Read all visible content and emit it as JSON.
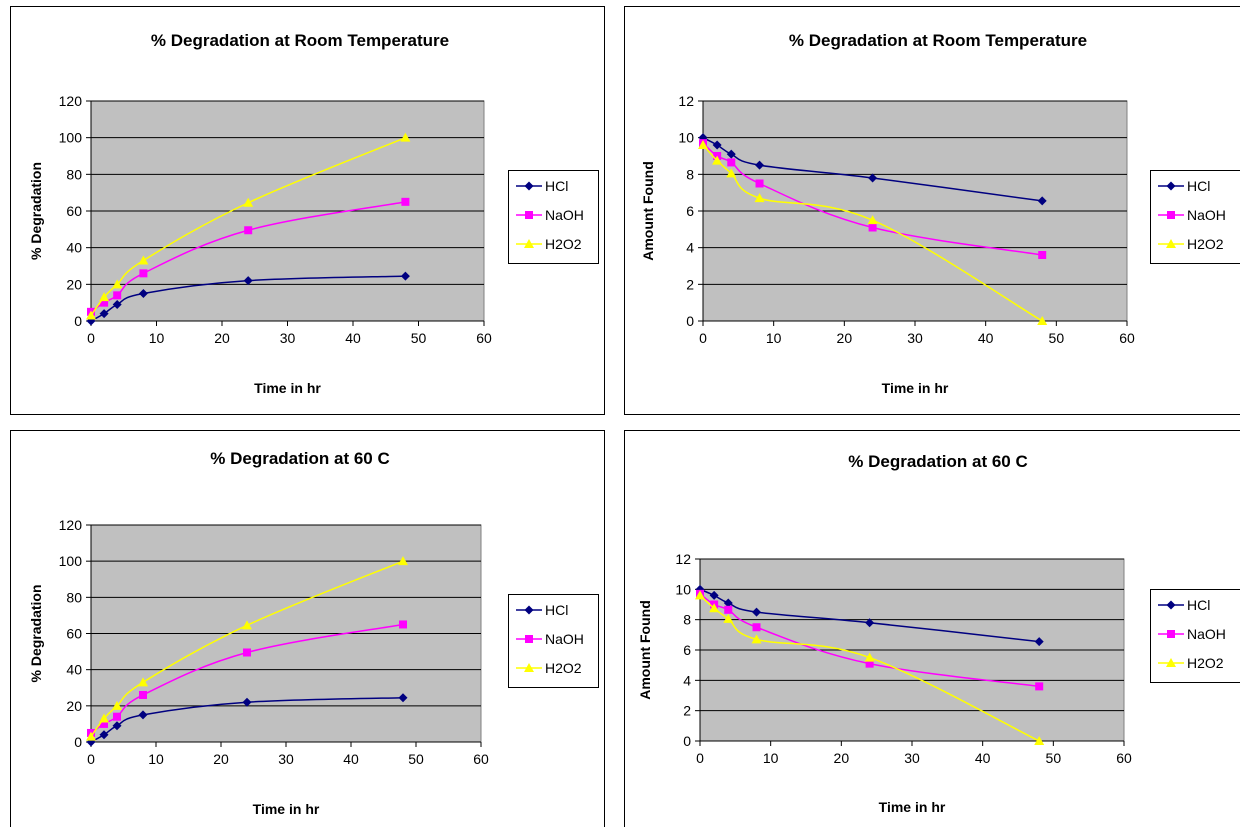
{
  "colors": {
    "HCl": "#000080",
    "NaOH": "#ff00ff",
    "H2O2": "#ffff00",
    "plot_bg": "#c0c0c0"
  },
  "chart_data": [
    {
      "type": "line",
      "title": "% Degradation at Room Temperature",
      "xlabel": "Time in hr",
      "ylabel": "% Degradation",
      "xlim": [
        0,
        60
      ],
      "ylim": [
        0,
        120
      ],
      "xticks": [
        0,
        10,
        20,
        30,
        40,
        50,
        60
      ],
      "yticks": [
        0,
        20,
        40,
        60,
        80,
        100,
        120
      ],
      "grid": true,
      "legend_position": "right",
      "x": [
        0,
        2,
        4,
        8,
        24,
        48
      ],
      "series": [
        {
          "name": "HCl",
          "marker": "diamond",
          "color": "#000080",
          "values": [
            0,
            4,
            9,
            15,
            22,
            24.5
          ]
        },
        {
          "name": "NaOH",
          "marker": "square",
          "color": "#ff00ff",
          "values": [
            5,
            10,
            14,
            26,
            49.5,
            65
          ]
        },
        {
          "name": "H2O2",
          "marker": "triangle",
          "color": "#ffff00",
          "values": [
            3,
            13,
            20,
            33,
            64.5,
            100
          ]
        }
      ]
    },
    {
      "type": "line",
      "title": "% Degradation at Room Temperature",
      "xlabel": "Time in hr",
      "ylabel": "Amount Found",
      "xlim": [
        0,
        60
      ],
      "ylim": [
        0,
        12
      ],
      "xticks": [
        0,
        10,
        20,
        30,
        40,
        50,
        60
      ],
      "yticks": [
        0,
        2,
        4,
        6,
        8,
        10,
        12
      ],
      "grid": true,
      "legend_position": "right",
      "x": [
        0,
        2,
        4,
        8,
        24,
        48
      ],
      "series": [
        {
          "name": "HCl",
          "marker": "diamond",
          "color": "#000080",
          "values": [
            10,
            9.6,
            9.1,
            8.5,
            7.8,
            6.55
          ]
        },
        {
          "name": "NaOH",
          "marker": "square",
          "color": "#ff00ff",
          "values": [
            9.7,
            9.0,
            8.65,
            7.5,
            5.1,
            3.6
          ]
        },
        {
          "name": "H2O2",
          "marker": "triangle",
          "color": "#ffff00",
          "values": [
            9.6,
            8.75,
            8.05,
            6.7,
            5.5,
            0
          ]
        }
      ]
    },
    {
      "type": "line",
      "title": "% Degradation at 60 C",
      "xlabel": "Time in hr",
      "ylabel": "% Degradation",
      "xlim": [
        0,
        60
      ],
      "ylim": [
        0,
        120
      ],
      "xticks": [
        0,
        10,
        20,
        30,
        40,
        50,
        60
      ],
      "yticks": [
        0,
        20,
        40,
        60,
        80,
        100,
        120
      ],
      "grid": true,
      "legend_position": "right",
      "x": [
        0,
        2,
        4,
        8,
        24,
        48
      ],
      "series": [
        {
          "name": "HCl",
          "marker": "diamond",
          "color": "#000080",
          "values": [
            0,
            4,
            9,
            15,
            22,
            24.5
          ]
        },
        {
          "name": "NaOH",
          "marker": "square",
          "color": "#ff00ff",
          "values": [
            5,
            10,
            14,
            26,
            49.5,
            65
          ]
        },
        {
          "name": "H2O2",
          "marker": "triangle",
          "color": "#ffff00",
          "values": [
            3,
            13,
            20,
            33,
            64.5,
            100
          ]
        }
      ]
    },
    {
      "type": "line",
      "title": "% Degradation at 60 C",
      "xlabel": "Time in hr",
      "ylabel": "Amount Found",
      "xlim": [
        0,
        60
      ],
      "ylim": [
        0,
        12
      ],
      "xticks": [
        0,
        10,
        20,
        30,
        40,
        50,
        60
      ],
      "yticks": [
        0,
        2,
        4,
        6,
        8,
        10,
        12
      ],
      "grid": true,
      "legend_position": "right",
      "x": [
        0,
        2,
        4,
        8,
        24,
        48
      ],
      "series": [
        {
          "name": "HCl",
          "marker": "diamond",
          "color": "#000080",
          "values": [
            10,
            9.6,
            9.1,
            8.5,
            7.8,
            6.55
          ]
        },
        {
          "name": "NaOH",
          "marker": "square",
          "color": "#ff00ff",
          "values": [
            9.7,
            9.0,
            8.65,
            7.5,
            5.1,
            3.6
          ]
        },
        {
          "name": "H2O2",
          "marker": "triangle",
          "color": "#ffff00",
          "values": [
            9.6,
            8.75,
            8.05,
            6.7,
            5.5,
            0
          ]
        }
      ]
    }
  ]
}
